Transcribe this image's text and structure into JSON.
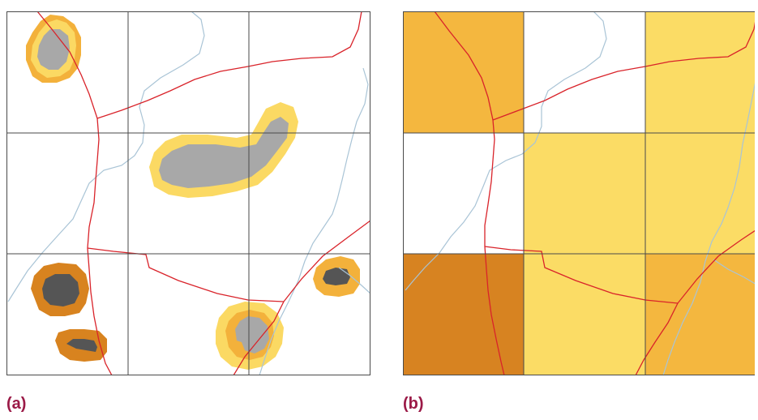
{
  "panels": [
    {
      "id": "a",
      "label": "(a)"
    },
    {
      "id": "b",
      "label": "(b)"
    }
  ],
  "colors": {
    "caption": "#9b1a47",
    "grid": "#4a4a4a",
    "road": "#d9232a",
    "river": "#a9c4d6",
    "core_light": "#a8a8a8",
    "core_dark": "#555555",
    "buffer_pale_yellow": "#fbd963",
    "buffer_orange": "#f3b13b",
    "buffer_dark_orange": "#d8831f",
    "cell_pale_yellow": "#fbdc65",
    "cell_orange": "#f4b73f",
    "cell_dark_orange": "#d78321",
    "cell_empty": "#ffffff"
  },
  "icons": {
    "raster_patch": "square-blob-shape"
  },
  "grid_classes": [
    [
      "orange",
      "empty",
      "pale_yellow"
    ],
    [
      "empty",
      "pale_yellow",
      "pale_yellow"
    ],
    [
      "dark_orange",
      "pale_yellow",
      "orange"
    ]
  ]
}
